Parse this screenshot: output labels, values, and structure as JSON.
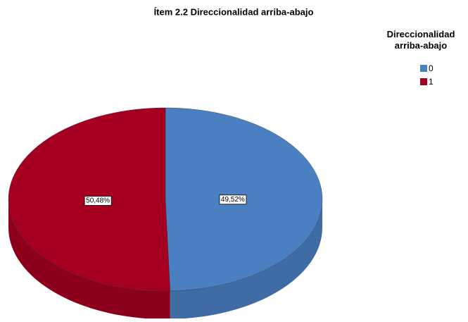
{
  "chart_data": {
    "type": "pie",
    "title": "Ítem 2.2 Direccionalidad arriba-abajo",
    "legend_title": "Direccionalidad arriba-abajo",
    "legend_position": "top-right",
    "categories": [
      "0",
      "1"
    ],
    "values": [
      49.52,
      50.48
    ],
    "value_labels": [
      "49,52%",
      "50,48%"
    ],
    "colors": [
      "#4a7fc1",
      "#a50021"
    ]
  }
}
